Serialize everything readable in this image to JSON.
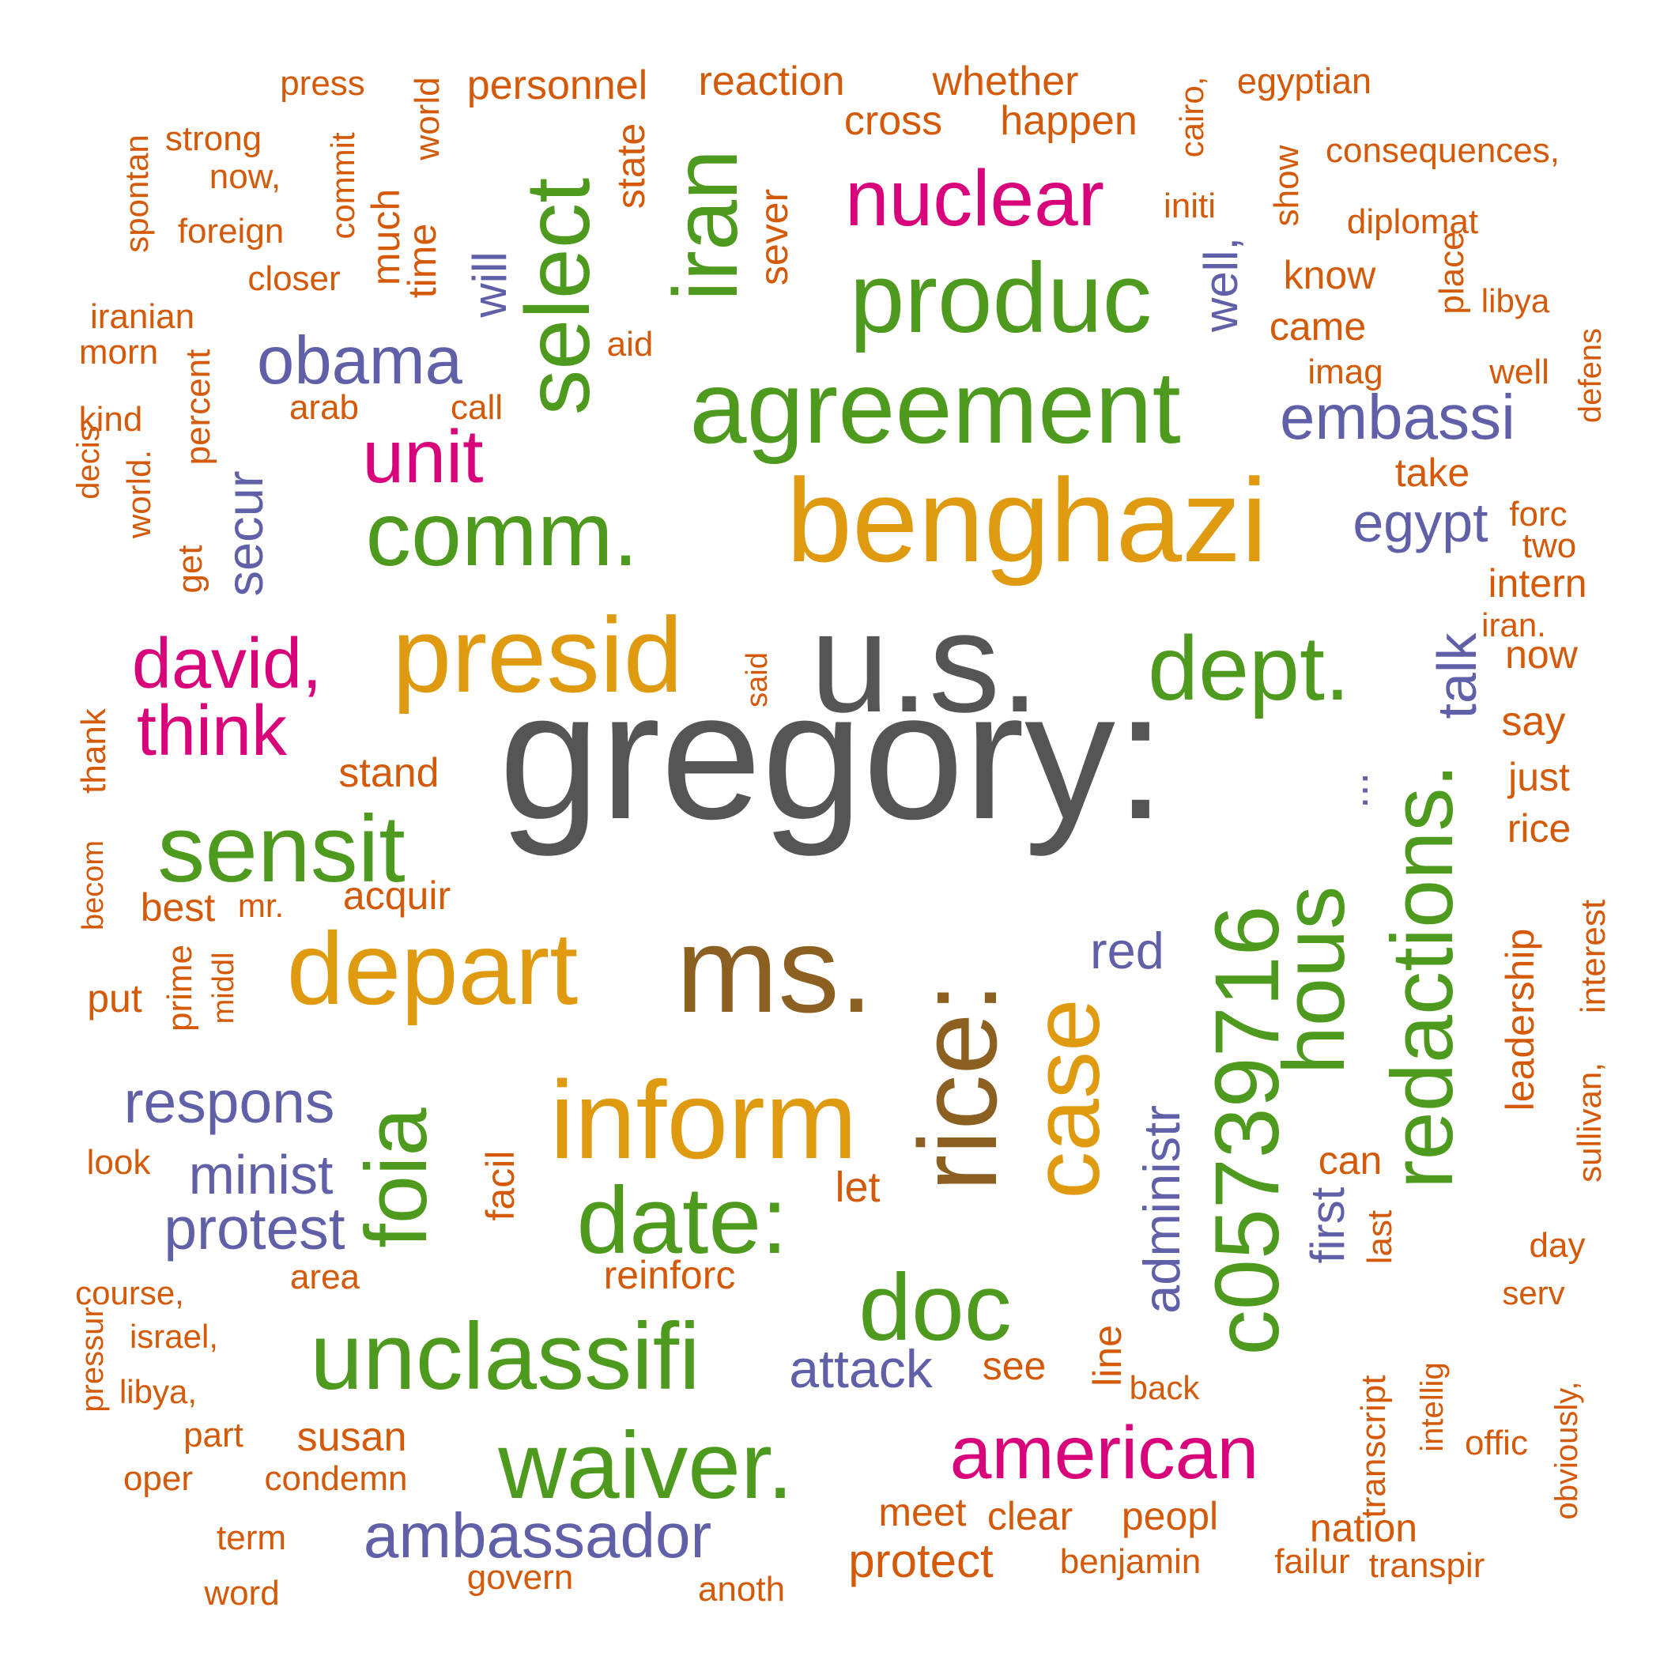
{
  "colors": {
    "gray": "#555555",
    "brown": "#8C6021",
    "gold": "#E09A10",
    "green": "#4E9A1E",
    "magenta": "#D8037A",
    "purple": "#6060A8",
    "orange": "#D45A0A"
  },
  "words": [
    {
      "text": "gregory:",
      "color": "gray"
    },
    {
      "text": "u.s.",
      "color": "gray"
    },
    {
      "text": "ms.",
      "color": "brown"
    },
    {
      "text": "rice:",
      "color": "brown"
    },
    {
      "text": "benghazi",
      "color": "gold"
    },
    {
      "text": "presid",
      "color": "gold"
    },
    {
      "text": "depart",
      "color": "gold"
    },
    {
      "text": "inform",
      "color": "gold"
    },
    {
      "text": "case",
      "color": "gold"
    },
    {
      "text": "c05739716",
      "color": "green"
    },
    {
      "text": "redactions.",
      "color": "green"
    },
    {
      "text": "agreement",
      "color": "green"
    },
    {
      "text": "produc",
      "color": "green"
    },
    {
      "text": "comm.",
      "color": "green"
    },
    {
      "text": "dept.",
      "color": "green"
    },
    {
      "text": "sensit",
      "color": "green"
    },
    {
      "text": "select",
      "color": "green"
    },
    {
      "text": "iran",
      "color": "green"
    },
    {
      "text": "foia",
      "color": "green"
    },
    {
      "text": "date:",
      "color": "green"
    },
    {
      "text": "unclassifi",
      "color": "green"
    },
    {
      "text": "waiver.",
      "color": "green"
    },
    {
      "text": "doc",
      "color": "green"
    },
    {
      "text": "hous",
      "color": "green"
    },
    {
      "text": "nuclear",
      "color": "magenta"
    },
    {
      "text": "unit",
      "color": "magenta"
    },
    {
      "text": "david,",
      "color": "magenta"
    },
    {
      "text": "think",
      "color": "magenta"
    },
    {
      "text": "american",
      "color": "magenta"
    },
    {
      "text": "obama",
      "color": "purple"
    },
    {
      "text": "embassi",
      "color": "purple"
    },
    {
      "text": "egypt",
      "color": "purple"
    },
    {
      "text": "talk",
      "color": "purple"
    },
    {
      "text": "secur",
      "color": "purple"
    },
    {
      "text": "will",
      "color": "purple"
    },
    {
      "text": "well,",
      "color": "purple"
    },
    {
      "text": "respons",
      "color": "purple"
    },
    {
      "text": "minist",
      "color": "purple"
    },
    {
      "text": "protest",
      "color": "purple"
    },
    {
      "text": "ambassador",
      "color": "purple"
    },
    {
      "text": "attack",
      "color": "purple"
    },
    {
      "text": "red",
      "color": "purple"
    },
    {
      "text": "administr",
      "color": "purple"
    },
    {
      "text": "first",
      "color": "purple"
    },
    {
      "text": "...",
      "color": "purple"
    },
    {
      "text": "press",
      "color": "orange"
    },
    {
      "text": "personnel",
      "color": "orange"
    },
    {
      "text": "reaction",
      "color": "orange"
    },
    {
      "text": "whether",
      "color": "orange"
    },
    {
      "text": "egyptian",
      "color": "orange"
    },
    {
      "text": "cairo,",
      "color": "orange"
    },
    {
      "text": "cross",
      "color": "orange"
    },
    {
      "text": "happen",
      "color": "orange"
    },
    {
      "text": "spontan",
      "color": "orange"
    },
    {
      "text": "strong",
      "color": "orange"
    },
    {
      "text": "now,",
      "color": "orange"
    },
    {
      "text": "foreign",
      "color": "orange"
    },
    {
      "text": "closer",
      "color": "orange"
    },
    {
      "text": "commit",
      "color": "orange"
    },
    {
      "text": "much",
      "color": "orange"
    },
    {
      "text": "time",
      "color": "orange"
    },
    {
      "text": "world",
      "color": "orange"
    },
    {
      "text": "state",
      "color": "orange"
    },
    {
      "text": "sever",
      "color": "orange"
    },
    {
      "text": "initi",
      "color": "orange"
    },
    {
      "text": "show",
      "color": "orange"
    },
    {
      "text": "consequences,",
      "color": "orange"
    },
    {
      "text": "diplomat",
      "color": "orange"
    },
    {
      "text": "know",
      "color": "orange"
    },
    {
      "text": "libya",
      "color": "orange"
    },
    {
      "text": "place",
      "color": "orange"
    },
    {
      "text": "came",
      "color": "orange"
    },
    {
      "text": "imag",
      "color": "orange"
    },
    {
      "text": "well",
      "color": "orange"
    },
    {
      "text": "defens",
      "color": "orange"
    },
    {
      "text": "iranian",
      "color": "orange"
    },
    {
      "text": "morn",
      "color": "orange"
    },
    {
      "text": "percent",
      "color": "orange"
    },
    {
      "text": "kind",
      "color": "orange"
    },
    {
      "text": "arab",
      "color": "orange"
    },
    {
      "text": "call",
      "color": "orange"
    },
    {
      "text": "aid",
      "color": "orange"
    },
    {
      "text": "decis",
      "color": "orange"
    },
    {
      "text": "world.",
      "color": "orange"
    },
    {
      "text": "get",
      "color": "orange"
    },
    {
      "text": "take",
      "color": "orange"
    },
    {
      "text": "forc",
      "color": "orange"
    },
    {
      "text": "two",
      "color": "orange"
    },
    {
      "text": "intern",
      "color": "orange"
    },
    {
      "text": "iran.",
      "color": "orange"
    },
    {
      "text": "now",
      "color": "orange"
    },
    {
      "text": "say",
      "color": "orange"
    },
    {
      "text": "said",
      "color": "orange"
    },
    {
      "text": "stand",
      "color": "orange"
    },
    {
      "text": "thank",
      "color": "orange"
    },
    {
      "text": "just",
      "color": "orange"
    },
    {
      "text": "rice",
      "color": "orange"
    },
    {
      "text": "best",
      "color": "orange"
    },
    {
      "text": "mr.",
      "color": "orange"
    },
    {
      "text": "acquir",
      "color": "orange"
    },
    {
      "text": "becom",
      "color": "orange"
    },
    {
      "text": "middl",
      "color": "orange"
    },
    {
      "text": "prime",
      "color": "orange"
    },
    {
      "text": "put",
      "color": "orange"
    },
    {
      "text": "interest",
      "color": "orange"
    },
    {
      "text": "leadership",
      "color": "orange"
    },
    {
      "text": "sullivan,",
      "color": "orange"
    },
    {
      "text": "look",
      "color": "orange"
    },
    {
      "text": "let",
      "color": "orange"
    },
    {
      "text": "facil",
      "color": "orange"
    },
    {
      "text": "can",
      "color": "orange"
    },
    {
      "text": "last",
      "color": "orange"
    },
    {
      "text": "day",
      "color": "orange"
    },
    {
      "text": "area",
      "color": "orange"
    },
    {
      "text": "reinforc",
      "color": "orange"
    },
    {
      "text": "course,",
      "color": "orange"
    },
    {
      "text": "serv",
      "color": "orange"
    },
    {
      "text": "israel,",
      "color": "orange"
    },
    {
      "text": "line",
      "color": "orange"
    },
    {
      "text": "pressur",
      "color": "orange"
    },
    {
      "text": "see",
      "color": "orange"
    },
    {
      "text": "transcript",
      "color": "orange"
    },
    {
      "text": "libya,",
      "color": "orange"
    },
    {
      "text": "back",
      "color": "orange"
    },
    {
      "text": "intellig",
      "color": "orange"
    },
    {
      "text": "obviously,",
      "color": "orange"
    },
    {
      "text": "part",
      "color": "orange"
    },
    {
      "text": "susan",
      "color": "orange"
    },
    {
      "text": "offic",
      "color": "orange"
    },
    {
      "text": "oper",
      "color": "orange"
    },
    {
      "text": "condemn",
      "color": "orange"
    },
    {
      "text": "meet",
      "color": "orange"
    },
    {
      "text": "clear",
      "color": "orange"
    },
    {
      "text": "peopl",
      "color": "orange"
    },
    {
      "text": "nation",
      "color": "orange"
    },
    {
      "text": "term",
      "color": "orange"
    },
    {
      "text": "protect",
      "color": "orange"
    },
    {
      "text": "benjamin",
      "color": "orange"
    },
    {
      "text": "failur",
      "color": "orange"
    },
    {
      "text": "transpir",
      "color": "orange"
    },
    {
      "text": "word",
      "color": "orange"
    },
    {
      "text": "govern",
      "color": "orange"
    },
    {
      "text": "anoth",
      "color": "orange"
    }
  ]
}
